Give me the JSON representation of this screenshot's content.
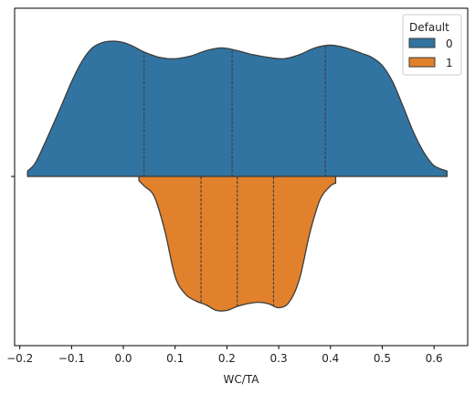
{
  "chart_data": {
    "type": "violin",
    "xlabel": "WC/TA",
    "ylabel": "",
    "xlim": [
      -0.21,
      0.665
    ],
    "xticks": [
      "−0.2",
      "−0.1",
      "0.0",
      "0.1",
      "0.2",
      "0.3",
      "0.4",
      "0.5",
      "0.6"
    ],
    "xtick_values": [
      -0.2,
      -0.1,
      0.0,
      0.1,
      0.2,
      0.3,
      0.4,
      0.5,
      0.6
    ],
    "yticks": [
      ""
    ],
    "split": true,
    "inner": "quartile",
    "grid": false,
    "legend": {
      "title": "Default",
      "placement": "top-right"
    },
    "series": [
      {
        "name": "0",
        "color": "#3274a1",
        "side": "upper",
        "range": [
          -0.185,
          0.625
        ],
        "quartiles": [
          0.04,
          0.21,
          0.39
        ],
        "density_x": [
          -0.185,
          -0.17,
          -0.15,
          -0.12,
          -0.1,
          -0.08,
          -0.06,
          -0.04,
          -0.02,
          0.0,
          0.02,
          0.04,
          0.07,
          0.1,
          0.13,
          0.16,
          0.19,
          0.22,
          0.25,
          0.28,
          0.31,
          0.34,
          0.37,
          0.4,
          0.43,
          0.46,
          0.48,
          0.5,
          0.52,
          0.54,
          0.56,
          0.58,
          0.6,
          0.625
        ],
        "density_y": [
          0.04,
          0.1,
          0.26,
          0.52,
          0.7,
          0.85,
          0.95,
          0.99,
          1.0,
          0.99,
          0.96,
          0.92,
          0.88,
          0.87,
          0.89,
          0.93,
          0.95,
          0.93,
          0.9,
          0.88,
          0.87,
          0.9,
          0.95,
          0.97,
          0.95,
          0.91,
          0.88,
          0.82,
          0.7,
          0.52,
          0.33,
          0.18,
          0.08,
          0.04
        ]
      },
      {
        "name": "1",
        "color": "#e1812c",
        "side": "lower",
        "range": [
          0.03,
          0.41
        ],
        "quartiles": [
          0.15,
          0.22,
          0.29
        ],
        "density_x": [
          0.03,
          0.04,
          0.06,
          0.08,
          0.1,
          0.12,
          0.14,
          0.16,
          0.18,
          0.2,
          0.22,
          0.24,
          0.26,
          0.28,
          0.3,
          0.32,
          0.34,
          0.36,
          0.38,
          0.4,
          0.41
        ],
        "density_y": [
          0.03,
          0.07,
          0.15,
          0.4,
          0.74,
          0.87,
          0.92,
          0.95,
          0.99,
          0.99,
          0.96,
          0.94,
          0.93,
          0.94,
          0.97,
          0.93,
          0.76,
          0.42,
          0.17,
          0.07,
          0.05
        ]
      }
    ]
  }
}
